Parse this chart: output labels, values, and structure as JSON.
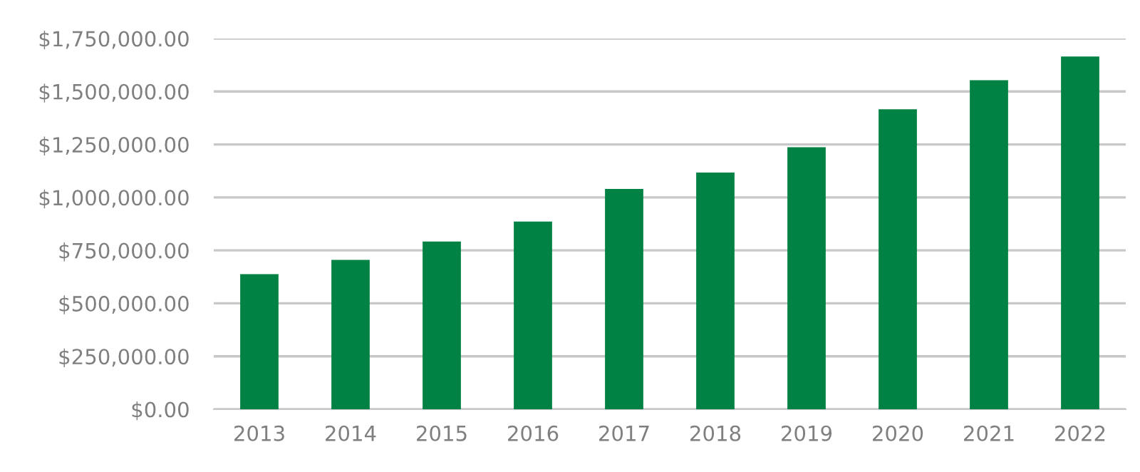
{
  "chart_data": {
    "type": "bar",
    "categories": [
      "2013",
      "2014",
      "2015",
      "2016",
      "2017",
      "2018",
      "2019",
      "2020",
      "2021",
      "2022"
    ],
    "values": [
      638000,
      705000,
      792000,
      886000,
      1040000,
      1117000,
      1237000,
      1416000,
      1553000,
      1665000
    ],
    "color": "#008244",
    "ylim": [
      0,
      1750000
    ],
    "yticks": [
      {
        "value": 0,
        "label": "$0.00"
      },
      {
        "value": 250000,
        "label": "$250,000.00"
      },
      {
        "value": 500000,
        "label": "$500,000.00"
      },
      {
        "value": 750000,
        "label": "$750,000.00"
      },
      {
        "value": 1000000,
        "label": "$1,000,000.00"
      },
      {
        "value": 1250000,
        "label": "$1,250,000.00"
      },
      {
        "value": 1500000,
        "label": "$1,500,000.00"
      },
      {
        "value": 1750000,
        "label": "$1,750,000.00"
      }
    ],
    "grid": "y"
  }
}
